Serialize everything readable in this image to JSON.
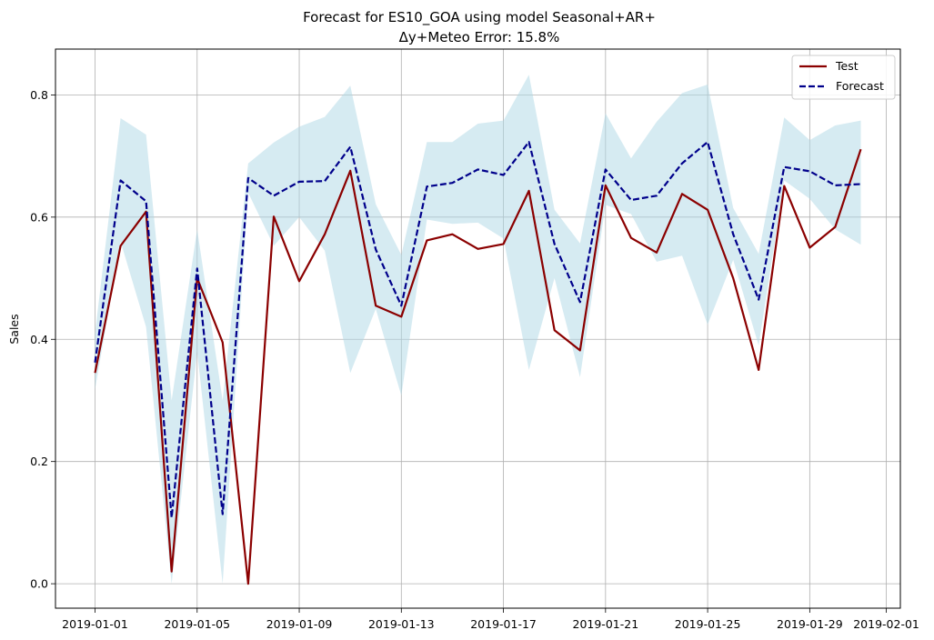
{
  "chart_data": {
    "type": "line",
    "title": "Forecast for ES10_GOA using model Seasonal+AR+",
    "subtitle": "Δy+Meteo Error: 15.8%",
    "xlabel": "",
    "ylabel": "Sales",
    "x": [
      "2019-01-01",
      "2019-01-02",
      "2019-01-03",
      "2019-01-04",
      "2019-01-05",
      "2019-01-06",
      "2019-01-07",
      "2019-01-08",
      "2019-01-09",
      "2019-01-10",
      "2019-01-11",
      "2019-01-12",
      "2019-01-13",
      "2019-01-14",
      "2019-01-15",
      "2019-01-16",
      "2019-01-17",
      "2019-01-18",
      "2019-01-19",
      "2019-01-20",
      "2019-01-21",
      "2019-01-22",
      "2019-01-23",
      "2019-01-24",
      "2019-01-25",
      "2019-01-26",
      "2019-01-27",
      "2019-01-28",
      "2019-01-29",
      "2019-01-30",
      "2019-01-31"
    ],
    "xlim": [
      "2019-01-00.6",
      "2019-02-01.5"
    ],
    "ylim": [
      -0.04,
      0.875
    ],
    "x_ticks": [
      "2019-01-01",
      "2019-01-05",
      "2019-01-09",
      "2019-01-13",
      "2019-01-17",
      "2019-01-21",
      "2019-01-25",
      "2019-01-29",
      "2019-02-01"
    ],
    "y_ticks": [
      0.0,
      0.2,
      0.4,
      0.6,
      0.8
    ],
    "grid": true,
    "legend_position": "top-right",
    "series": [
      {
        "name": "Test",
        "color": "#8b0000",
        "style": "solid",
        "values": [
          0.345,
          0.553,
          0.609,
          0.02,
          0.5,
          0.395,
          0.0,
          0.601,
          0.495,
          0.572,
          0.676,
          0.455,
          0.437,
          0.562,
          0.572,
          0.548,
          0.556,
          0.643,
          0.415,
          0.382,
          0.652,
          0.566,
          0.542,
          0.638,
          0.612,
          0.5,
          0.35,
          0.651,
          0.55,
          0.584,
          0.711
        ]
      },
      {
        "name": "Forecast",
        "color": "#00008b",
        "style": "dashed",
        "values": [
          0.362,
          0.66,
          0.626,
          0.108,
          0.516,
          0.114,
          0.664,
          0.635,
          0.658,
          0.659,
          0.715,
          0.547,
          0.455,
          0.65,
          0.656,
          0.678,
          0.669,
          0.723,
          0.556,
          0.461,
          0.678,
          0.628,
          0.635,
          0.688,
          0.723,
          0.572,
          0.465,
          0.682,
          0.675,
          0.652,
          0.654
        ]
      }
    ],
    "band": {
      "color": "#add8e6",
      "upper": [
        0.41,
        0.762,
        0.735,
        0.3,
        0.58,
        0.3,
        0.688,
        0.722,
        0.748,
        0.764,
        0.815,
        0.621,
        0.538,
        0.723,
        0.723,
        0.753,
        0.758,
        0.833,
        0.612,
        0.557,
        0.77,
        0.696,
        0.756,
        0.803,
        0.817,
        0.615,
        0.54,
        0.763,
        0.726,
        0.75,
        0.758
      ],
      "lower": [
        0.318,
        0.56,
        0.42,
        0.0,
        0.38,
        0.0,
        0.64,
        0.553,
        0.6,
        0.545,
        0.345,
        0.45,
        0.308,
        0.596,
        0.589,
        0.591,
        0.565,
        0.35,
        0.5,
        0.338,
        0.62,
        0.605,
        0.527,
        0.537,
        0.424,
        0.53,
        0.39,
        0.66,
        0.63,
        0.58,
        0.555
      ]
    }
  }
}
